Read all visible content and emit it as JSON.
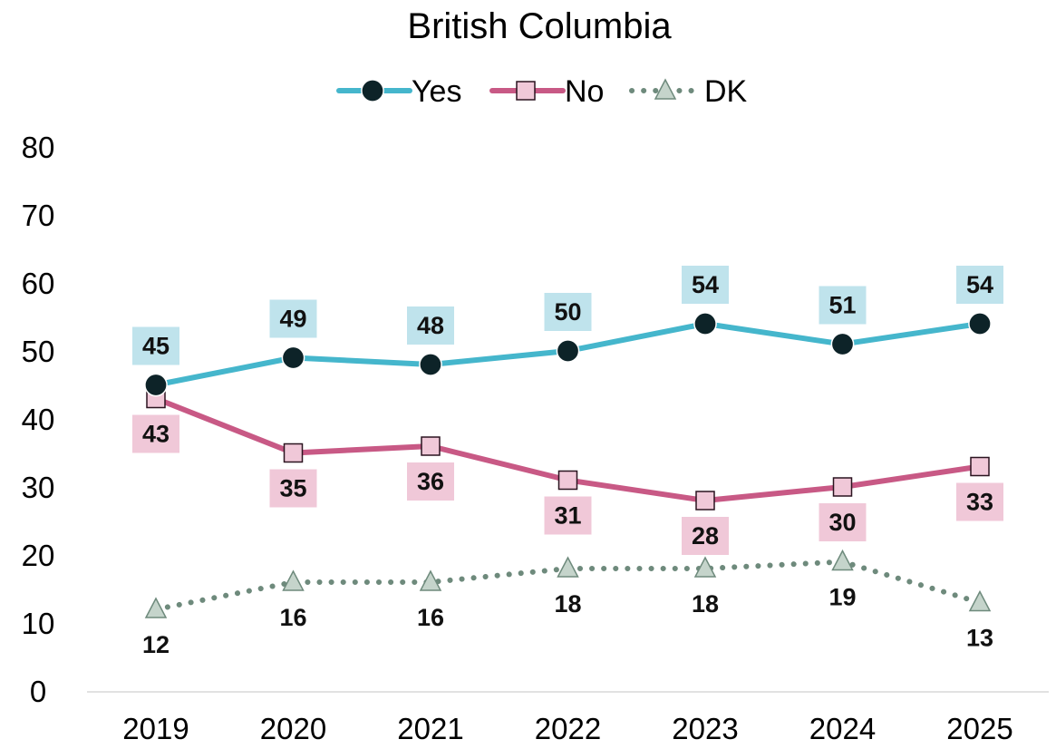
{
  "chart_data": {
    "type": "line",
    "title": "British Columbia",
    "xlabel": "",
    "ylabel": "",
    "categories": [
      "2019",
      "2020",
      "2021",
      "2022",
      "2023",
      "2024",
      "2025"
    ],
    "ylim": [
      0,
      80
    ],
    "yticks": [
      0,
      10,
      20,
      30,
      40,
      50,
      60,
      70,
      80
    ],
    "grid": false,
    "legend_position": "top",
    "series": [
      {
        "name": "Yes",
        "values": [
          45,
          49,
          48,
          50,
          54,
          51,
          54
        ],
        "color": "#45b6cc",
        "marker": "circle",
        "marker_color": "#0d2328",
        "line_style": "solid",
        "label_position": "above",
        "label_bg": "#bfe3ec"
      },
      {
        "name": "No",
        "values": [
          43,
          35,
          36,
          31,
          28,
          30,
          33
        ],
        "color": "#c85985",
        "marker": "square",
        "marker_color": "#f0c8d8",
        "line_style": "solid",
        "label_position": "below",
        "label_bg": "#f0c8d8"
      },
      {
        "name": "DK",
        "values": [
          12,
          16,
          16,
          18,
          18,
          19,
          13
        ],
        "color": "#6e8a7c",
        "marker": "triangle",
        "marker_color": "#c5d4cb",
        "line_style": "dotted",
        "label_position": "below",
        "label_bg": "none"
      }
    ]
  }
}
